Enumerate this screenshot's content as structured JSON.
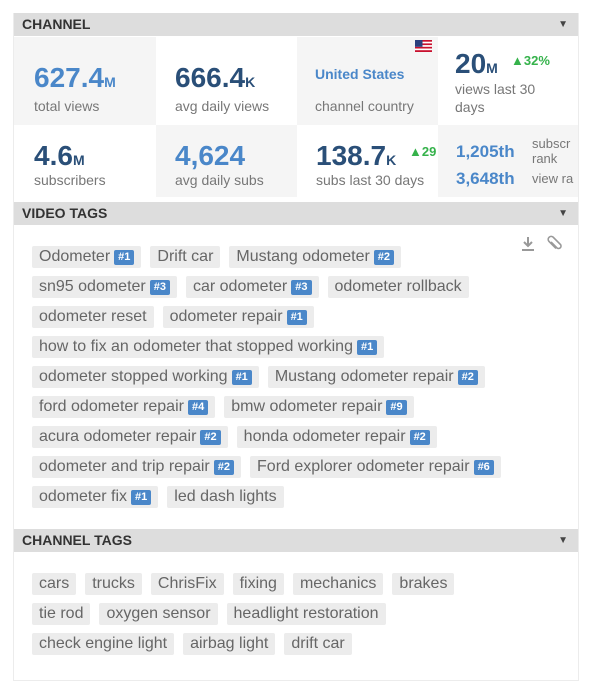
{
  "channel": {
    "header": "CHANNEL",
    "stats": {
      "total_views": {
        "value": "627.4",
        "unit": "M",
        "label": "total views"
      },
      "avg_daily_views": {
        "value": "666.4",
        "unit": "K",
        "label": "avg daily views"
      },
      "country": {
        "value": "United States",
        "label": "channel country",
        "flag": "us-flag"
      },
      "views_30": {
        "value": "20",
        "unit": "M",
        "change": "▲32%",
        "label": "views last 30 days"
      },
      "subscribers": {
        "value": "4.6",
        "unit": "M",
        "label": "subscribers"
      },
      "avg_daily_subs": {
        "value": "4,624",
        "label": "avg daily subs"
      },
      "subs_30": {
        "value": "138.7",
        "unit": "K",
        "change": "▲29",
        "label": "subs last 30 days"
      },
      "ranks": {
        "subscriber_rank": "1,205th",
        "subscriber_rank_label": "subscr",
        "rank_word": "rank",
        "view_rank": "3,648th",
        "view_rank_label": "view ra"
      }
    }
  },
  "video_tags": {
    "header": "VIDEO TAGS",
    "items": [
      {
        "label": "Odometer",
        "rank": "#1"
      },
      {
        "label": "Drift car",
        "rank": ""
      },
      {
        "label": "Mustang odometer",
        "rank": "#2"
      },
      {
        "label": "sn95 odometer",
        "rank": "#3"
      },
      {
        "label": "car odometer",
        "rank": "#3"
      },
      {
        "label": "odometer rollback",
        "rank": ""
      },
      {
        "label": "odometer reset",
        "rank": ""
      },
      {
        "label": "odometer repair",
        "rank": "#1"
      },
      {
        "label": "how to fix an odometer that stopped working",
        "rank": "#1"
      },
      {
        "label": "odometer stopped working",
        "rank": "#1"
      },
      {
        "label": "Mustang odometer repair",
        "rank": "#2"
      },
      {
        "label": "ford odometer repair",
        "rank": "#4"
      },
      {
        "label": "bmw odometer repair",
        "rank": "#9"
      },
      {
        "label": "acura odometer repair",
        "rank": "#2"
      },
      {
        "label": "honda odometer repair",
        "rank": "#2"
      },
      {
        "label": "odometer and trip repair",
        "rank": "#2"
      },
      {
        "label": "Ford explorer odometer repair",
        "rank": "#6"
      },
      {
        "label": "odometer fix",
        "rank": "#1"
      },
      {
        "label": "led dash lights",
        "rank": ""
      }
    ]
  },
  "channel_tags": {
    "header": "CHANNEL TAGS",
    "items": [
      "cars",
      "trucks",
      "ChrisFix",
      "fixing",
      "mechanics",
      "brakes",
      "tie rod",
      "oxygen sensor",
      "headlight restoration",
      "check engine light",
      "airbag light",
      "drift car"
    ]
  },
  "icons": {
    "caret": "▼",
    "download": "download-icon",
    "attach": "paperclip-icon"
  },
  "colors": {
    "accent_blue": "#4a87c9",
    "dark_blue": "#2a4f78",
    "positive": "#35b24b",
    "header_bg": "#dddddd",
    "tag_bg": "#ececec"
  }
}
